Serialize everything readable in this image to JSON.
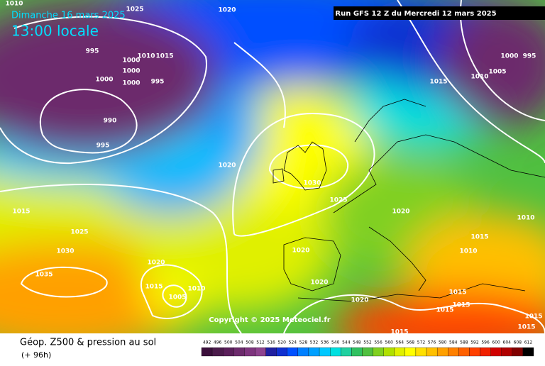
{
  "header": {
    "date": "Dimanche 16 mars 2025",
    "time": "13:00 locale",
    "run": "Run GFS 12 Z du Mercredi 12 mars 2025"
  },
  "copyright": "Copyright © 2025 Meteociel.fr",
  "footer": {
    "title": "Géop. Z500 & pression au sol",
    "lead": "(+ 96h)"
  },
  "isobar_labels": [
    "995",
    "1000",
    "1000",
    "1000",
    "1000",
    "1010",
    "1015",
    "995",
    "990",
    "995",
    "1020",
    "1030",
    "1025",
    "1020",
    "1020",
    "1020",
    "1020",
    "1015",
    "1025",
    "1030",
    "1035",
    "1020",
    "1015",
    "1010",
    "1005",
    "1015",
    "1010",
    "1005",
    "1000",
    "995",
    "1010",
    "1015",
    "1010",
    "1015",
    "1015",
    "1015",
    "1015",
    "1015",
    "1015",
    "1025",
    "1020",
    "1010"
  ],
  "legend": {
    "values": [
      492,
      496,
      500,
      504,
      508,
      512,
      516,
      520,
      524,
      528,
      532,
      536,
      540,
      544,
      548,
      552,
      556,
      560,
      564,
      568,
      572,
      576,
      580,
      584,
      588,
      592,
      596,
      600,
      604,
      608,
      612
    ],
    "colors": [
      "#3b0f3b",
      "#4b1b4b",
      "#5a1f5a",
      "#6c2a6c",
      "#7e347e",
      "#8e428e",
      "#2020a0",
      "#1030d0",
      "#0050ff",
      "#0080ff",
      "#00a0ff",
      "#00c8ff",
      "#00e0e0",
      "#20d0a0",
      "#30c060",
      "#50c040",
      "#80d020",
      "#b0e000",
      "#e0f000",
      "#ffff00",
      "#ffe000",
      "#ffc000",
      "#ffa000",
      "#ff8000",
      "#ff6000",
      "#ff4000",
      "#f02000",
      "#d00000",
      "#b00000",
      "#800000",
      "#000000"
    ]
  }
}
